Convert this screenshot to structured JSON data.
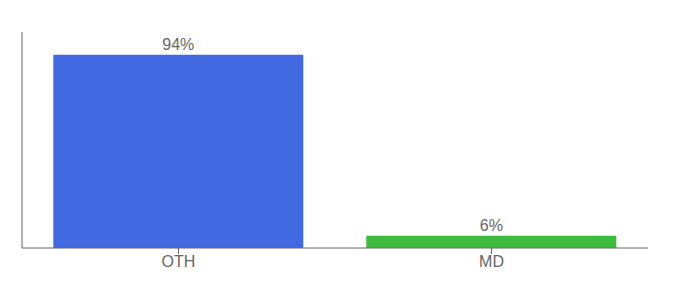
{
  "chart_data": {
    "type": "bar",
    "categories": [
      "OTH",
      "MD"
    ],
    "values": [
      94,
      6
    ],
    "value_labels": [
      "94%",
      "6%"
    ],
    "colors": [
      "#4169e1",
      "#3dbb3d"
    ],
    "ylim": [
      0,
      105
    ],
    "data_labels": true,
    "tick_labels": "x",
    "grid": false
  }
}
